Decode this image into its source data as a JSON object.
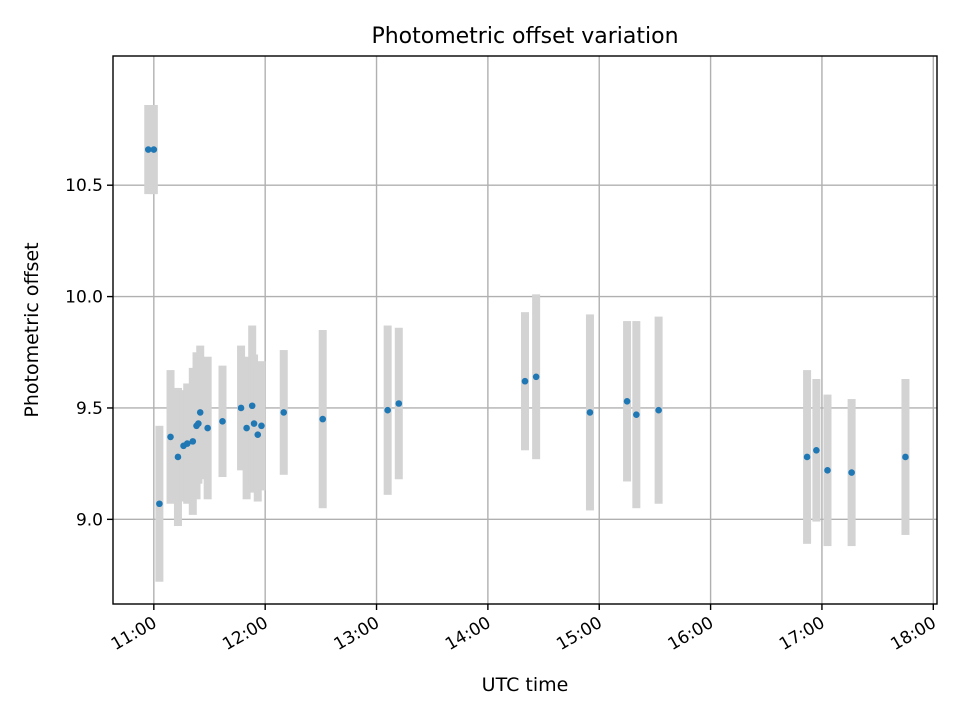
{
  "chart_data": {
    "type": "scatter",
    "title": "Photometric offset variation",
    "xlabel": "UTC time",
    "ylabel": "Photometric offset",
    "x_ticks": [
      "11:00",
      "12:00",
      "13:00",
      "14:00",
      "15:00",
      "16:00",
      "17:00",
      "18:00"
    ],
    "y_ticks": [
      "9.0",
      "9.5",
      "10.0",
      "10.5"
    ],
    "xlim": [
      "10:38",
      "18:02"
    ],
    "ylim": [
      8.62,
      11.08
    ],
    "grid": true,
    "colors": {
      "point": "#1f77b4",
      "errorbar": "#d3d3d3"
    },
    "series": [
      {
        "points": [
          {
            "x": "10:57",
            "y": 10.66,
            "err": 0.2
          },
          {
            "x": "11:00",
            "y": 10.66,
            "err": 0.2
          },
          {
            "x": "11:03",
            "y": 9.07,
            "err": 0.35
          },
          {
            "x": "11:09",
            "y": 9.37,
            "err": 0.3
          },
          {
            "x": "11:13",
            "y": 9.28,
            "err": 0.31
          },
          {
            "x": "11:16",
            "y": 9.33,
            "err": 0.25
          },
          {
            "x": "11:18",
            "y": 9.34,
            "err": 0.27
          },
          {
            "x": "11:21",
            "y": 9.35,
            "err": 0.33
          },
          {
            "x": "11:23",
            "y": 9.42,
            "err": 0.33
          },
          {
            "x": "11:24",
            "y": 9.43,
            "err": 0.27
          },
          {
            "x": "11:25",
            "y": 9.48,
            "err": 0.3
          },
          {
            "x": "11:29",
            "y": 9.41,
            "err": 0.32
          },
          {
            "x": "11:37",
            "y": 9.44,
            "err": 0.25
          },
          {
            "x": "11:47",
            "y": 9.5,
            "err": 0.28
          },
          {
            "x": "11:50",
            "y": 9.41,
            "err": 0.32
          },
          {
            "x": "11:53",
            "y": 9.51,
            "err": 0.36
          },
          {
            "x": "11:54",
            "y": 9.43,
            "err": 0.31
          },
          {
            "x": "11:56",
            "y": 9.38,
            "err": 0.3
          },
          {
            "x": "11:58",
            "y": 9.42,
            "err": 0.29
          },
          {
            "x": "12:10",
            "y": 9.48,
            "err": 0.28
          },
          {
            "x": "12:31",
            "y": 9.45,
            "err": 0.4
          },
          {
            "x": "13:06",
            "y": 9.49,
            "err": 0.38
          },
          {
            "x": "13:12",
            "y": 9.52,
            "err": 0.34
          },
          {
            "x": "14:20",
            "y": 9.62,
            "err": 0.31
          },
          {
            "x": "14:26",
            "y": 9.64,
            "err": 0.37
          },
          {
            "x": "14:55",
            "y": 9.48,
            "err": 0.44
          },
          {
            "x": "15:15",
            "y": 9.53,
            "err": 0.36
          },
          {
            "x": "15:20",
            "y": 9.47,
            "err": 0.42
          },
          {
            "x": "15:32",
            "y": 9.49,
            "err": 0.42
          },
          {
            "x": "16:52",
            "y": 9.28,
            "err": 0.39
          },
          {
            "x": "16:57",
            "y": 9.31,
            "err": 0.32
          },
          {
            "x": "17:03",
            "y": 9.22,
            "err": 0.34
          },
          {
            "x": "17:16",
            "y": 9.21,
            "err": 0.33
          },
          {
            "x": "17:45",
            "y": 9.28,
            "err": 0.35
          }
        ]
      }
    ]
  }
}
